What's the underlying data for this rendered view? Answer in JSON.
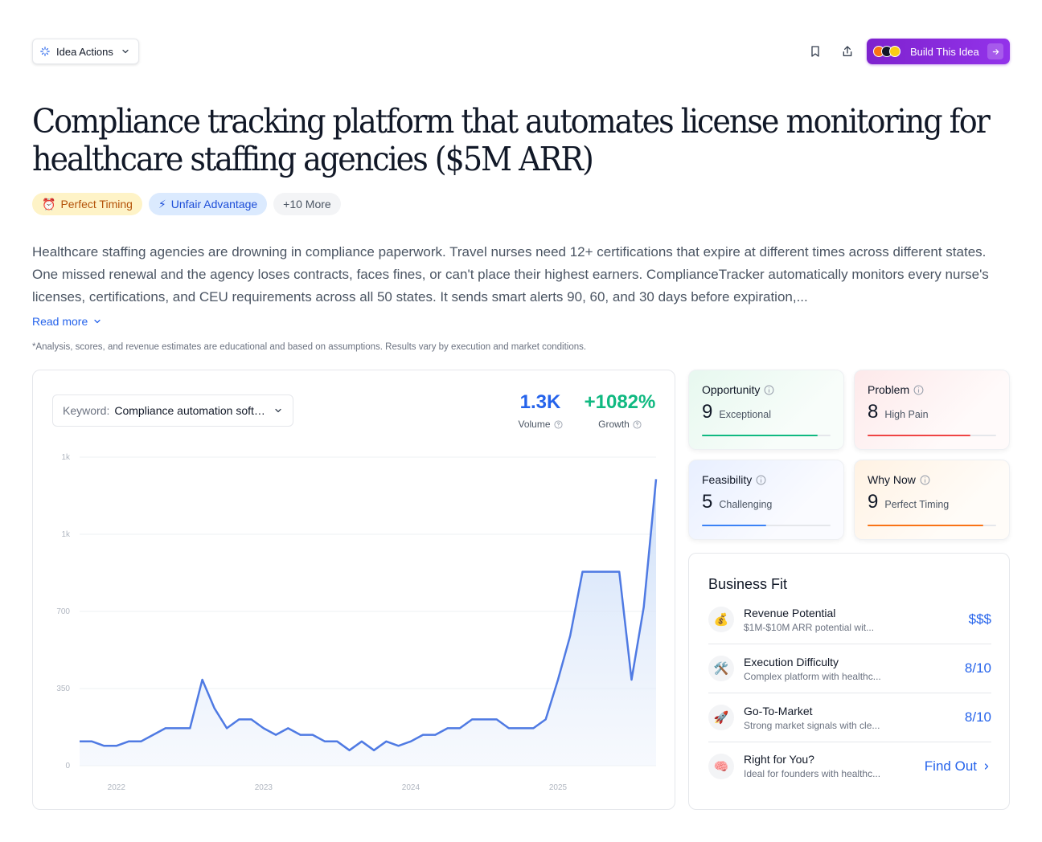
{
  "toolbar": {
    "idea_actions_label": "Idea Actions",
    "build_label": "Build This Idea"
  },
  "title": "Compliance tracking platform that automates license monitoring for healthcare staffing agencies ($5M ARR)",
  "tags": {
    "timing": "Perfect Timing",
    "advantage": "Unfair Advantage",
    "more": "+10 More"
  },
  "description": "Healthcare staffing agencies are drowning in compliance paperwork. Travel nurses need 12+ certifications that expire at different times across different states. One missed renewal and the agency loses contracts, faces fines, or can't place their highest earners. ComplianceTracker automatically monitors every nurse's licenses, certifications, and CEU requirements across all 50 states. It sends smart alerts 90, 60, and 30 days before expiration,...",
  "read_more": "Read more",
  "disclaimer": "*Analysis, scores, and revenue estimates are educational and based on assumptions. Results vary by execution and market conditions.",
  "keyword": {
    "label": "Keyword:",
    "value": "Compliance automation software"
  },
  "stats": {
    "volume_value": "1.3K",
    "volume_label": "Volume",
    "growth_value": "+1082%",
    "growth_label": "Growth"
  },
  "chart_data": {
    "type": "area",
    "title": "",
    "xlabel": "",
    "ylabel": "",
    "y_tick_labels": [
      "0",
      "350",
      "700",
      "1k",
      "1k"
    ],
    "y_tick_values": [
      0,
      350,
      700,
      1050,
      1400
    ],
    "x_tick_labels": [
      "2022",
      "2023",
      "2024",
      "2025"
    ],
    "x_tick_index": [
      3,
      15,
      27,
      39
    ],
    "ylim": [
      0,
      1400
    ],
    "grid": true,
    "series": [
      {
        "color": "#4f7ae3",
        "values": [
          110,
          110,
          90,
          90,
          110,
          110,
          140,
          170,
          170,
          170,
          390,
          260,
          170,
          210,
          210,
          170,
          140,
          170,
          140,
          140,
          110,
          110,
          70,
          110,
          70,
          110,
          90,
          110,
          140,
          140,
          170,
          170,
          210,
          210,
          210,
          170,
          170,
          170,
          210,
          390,
          590,
          880,
          880,
          880,
          880,
          390,
          720,
          1300
        ]
      }
    ]
  },
  "scores": {
    "opportunity": {
      "label": "Opportunity",
      "value": "9",
      "desc": "Exceptional",
      "color": "#10b981",
      "fill": 0.9
    },
    "problem": {
      "label": "Problem",
      "value": "8",
      "desc": "High Pain",
      "color": "#ef4444",
      "fill": 0.8
    },
    "feasibility": {
      "label": "Feasibility",
      "value": "5",
      "desc": "Challenging",
      "color": "#3b82f6",
      "fill": 0.5
    },
    "why_now": {
      "label": "Why Now",
      "value": "9",
      "desc": "Perfect Timing",
      "color": "#f97316",
      "fill": 0.9
    }
  },
  "business_fit": {
    "title": "Business Fit",
    "rows": [
      {
        "icon": "💰",
        "title": "Revenue Potential",
        "desc": "$1M-$10M ARR potential wit...",
        "value": "$$$"
      },
      {
        "icon": "🛠️",
        "title": "Execution Difficulty",
        "desc": "Complex platform with healthc...",
        "value": "8/10"
      },
      {
        "icon": "🚀",
        "title": "Go-To-Market",
        "desc": "Strong market signals with cle...",
        "value": "8/10"
      },
      {
        "icon": "🧠",
        "title": "Right for You?",
        "desc": "Ideal for founders with healthc...",
        "value": "Find Out"
      }
    ]
  }
}
